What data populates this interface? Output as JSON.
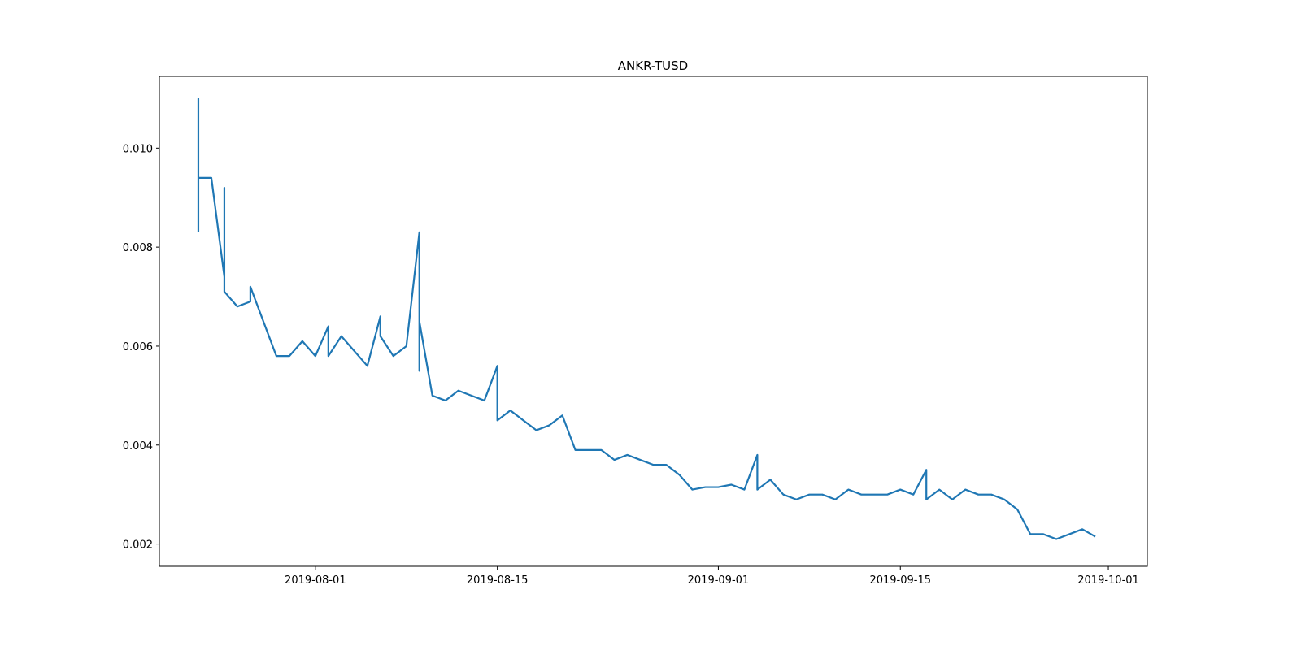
{
  "chart_data": {
    "type": "line",
    "title": "ANKR-TUSD",
    "x": [
      "2019-07-23",
      "2019-07-23",
      "2019-07-23",
      "2019-07-24",
      "2019-07-25",
      "2019-07-25",
      "2019-07-25",
      "2019-07-26",
      "2019-07-27",
      "2019-07-27",
      "2019-07-28",
      "2019-07-29",
      "2019-07-30",
      "2019-07-31",
      "2019-08-01",
      "2019-08-02",
      "2019-08-02",
      "2019-08-03",
      "2019-08-04",
      "2019-08-05",
      "2019-08-06",
      "2019-08-06",
      "2019-08-07",
      "2019-08-08",
      "2019-08-09",
      "2019-08-09",
      "2019-08-09",
      "2019-08-10",
      "2019-08-11",
      "2019-08-12",
      "2019-08-13",
      "2019-08-14",
      "2019-08-15",
      "2019-08-15",
      "2019-08-16",
      "2019-08-17",
      "2019-08-18",
      "2019-08-19",
      "2019-08-20",
      "2019-08-21",
      "2019-08-22",
      "2019-08-23",
      "2019-08-24",
      "2019-08-25",
      "2019-08-26",
      "2019-08-27",
      "2019-08-28",
      "2019-08-29",
      "2019-08-30",
      "2019-08-31",
      "2019-09-01",
      "2019-09-02",
      "2019-09-03",
      "2019-09-04",
      "2019-09-04",
      "2019-09-05",
      "2019-09-06",
      "2019-09-07",
      "2019-09-08",
      "2019-09-09",
      "2019-09-10",
      "2019-09-11",
      "2019-09-12",
      "2019-09-13",
      "2019-09-14",
      "2019-09-15",
      "2019-09-16",
      "2019-09-17",
      "2019-09-17",
      "2019-09-18",
      "2019-09-19",
      "2019-09-20",
      "2019-09-21",
      "2019-09-22",
      "2019-09-23",
      "2019-09-24",
      "2019-09-25",
      "2019-09-26",
      "2019-09-27",
      "2019-09-28",
      "2019-09-29",
      "2019-09-30"
    ],
    "series": [
      {
        "name": "ANKR-TUSD",
        "color": "#1f77b4",
        "values": [
          0.0083,
          0.011,
          0.0094,
          0.0094,
          0.0074,
          0.0092,
          0.0071,
          0.0068,
          0.0069,
          0.0072,
          0.0065,
          0.0058,
          0.0058,
          0.0061,
          0.0058,
          0.0064,
          0.0058,
          0.0062,
          0.0059,
          0.0056,
          0.0066,
          0.0062,
          0.0058,
          0.006,
          0.0083,
          0.0055,
          0.0065,
          0.005,
          0.0049,
          0.0051,
          0.005,
          0.0049,
          0.0056,
          0.0045,
          0.0047,
          0.0045,
          0.0043,
          0.0044,
          0.0046,
          0.0039,
          0.0039,
          0.0039,
          0.0037,
          0.0038,
          0.0037,
          0.0036,
          0.0036,
          0.0034,
          0.0031,
          0.00315,
          0.00315,
          0.0032,
          0.0031,
          0.0038,
          0.0031,
          0.0033,
          0.003,
          0.0029,
          0.003,
          0.003,
          0.0029,
          0.0031,
          0.003,
          0.003,
          0.003,
          0.0031,
          0.003,
          0.0035,
          0.0029,
          0.0031,
          0.0029,
          0.0031,
          0.003,
          0.003,
          0.0029,
          0.0027,
          0.0022,
          0.0022,
          0.0021,
          0.0022,
          0.0023,
          0.00215
        ]
      }
    ],
    "xlim": [
      "2019-07-20",
      "2019-10-04"
    ],
    "xticks": [
      "2019-08-01",
      "2019-08-15",
      "2019-09-01",
      "2019-09-15",
      "2019-10-01"
    ],
    "ylim": [
      0.00155,
      0.01145
    ],
    "yticks": [
      0.002,
      0.004,
      0.006,
      0.008,
      {
        "value": 0.01,
        "label": "0.010"
      }
    ]
  }
}
